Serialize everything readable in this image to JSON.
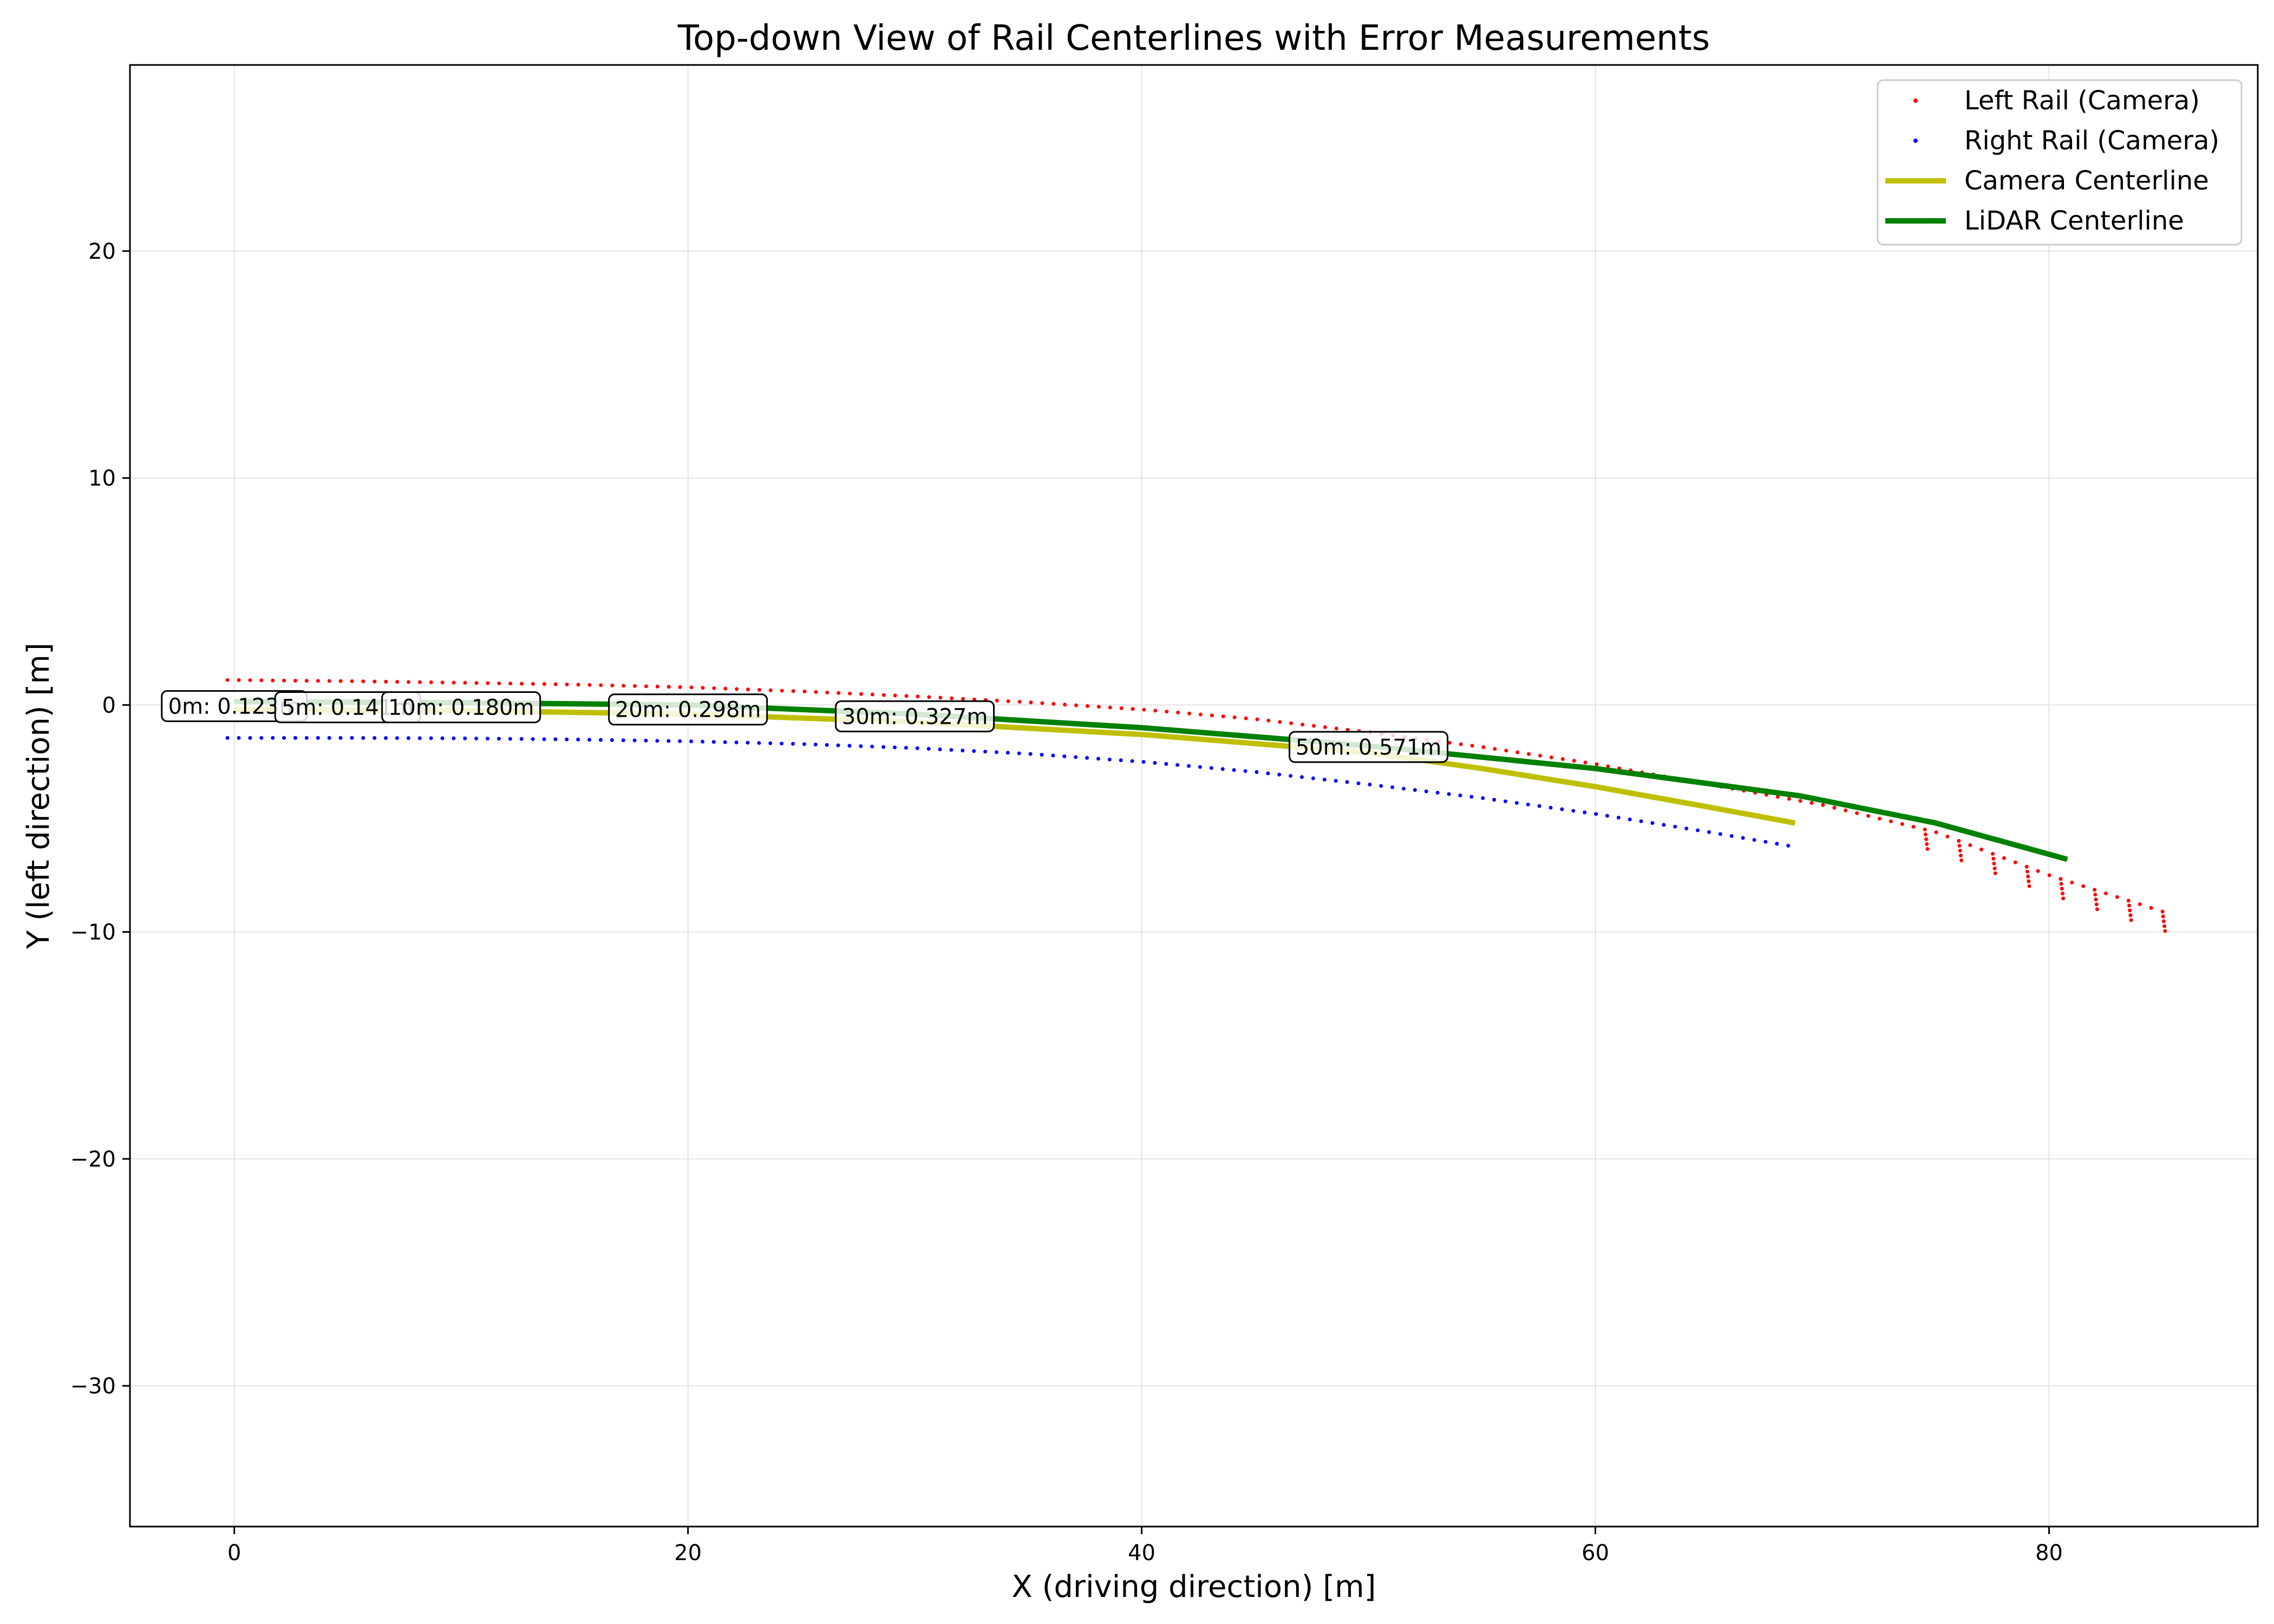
{
  "chart_data": {
    "type": "scatter",
    "title": "Top-down View of Rail Centerlines with Error Measurements",
    "xlabel": "X (driving direction) [m]",
    "ylabel": "Y (left direction) [m]",
    "xlim": [
      -4.6,
      89.2
    ],
    "ylim": [
      -36.2,
      28.2
    ],
    "x_ticks": [
      0,
      20,
      40,
      60,
      80
    ],
    "x_tick_labels": [
      "0",
      "20",
      "40",
      "60",
      "80"
    ],
    "y_ticks": [
      -30,
      -20,
      -10,
      0,
      10,
      20
    ],
    "y_tick_labels": [
      "−30",
      "−20",
      "−10",
      "0",
      "10",
      "20"
    ],
    "grid": true,
    "legend_position": "top-right",
    "series": [
      {
        "name": "Left Rail (Camera)",
        "style": "dots",
        "color": "#ff0000",
        "x": [
          -0.3,
          5,
          10,
          15,
          20,
          25,
          30,
          35,
          40,
          45,
          50,
          55,
          60,
          65,
          70,
          75,
          80,
          85
        ],
        "y": [
          1.1,
          1.05,
          0.98,
          0.9,
          0.78,
          0.6,
          0.38,
          0.12,
          -0.2,
          -0.62,
          -1.2,
          -1.85,
          -2.6,
          -3.5,
          -4.4,
          -5.6,
          -7.5,
          -9.1
        ]
      },
      {
        "name": "Right Rail (Camera)",
        "style": "dots",
        "color": "#0000ff",
        "x": [
          -0.3,
          5,
          10,
          15,
          20,
          25,
          30,
          35,
          40,
          45,
          50,
          55,
          60,
          65,
          68.5
        ],
        "y": [
          -1.45,
          -1.45,
          -1.47,
          -1.52,
          -1.6,
          -1.72,
          -1.9,
          -2.15,
          -2.5,
          -2.95,
          -3.5,
          -4.1,
          -4.8,
          -5.6,
          -6.2
        ]
      },
      {
        "name": "Camera Centerline",
        "style": "line",
        "color": "#bfbf00",
        "x": [
          0,
          10,
          20,
          30,
          40,
          50,
          55,
          60,
          65,
          68.8
        ],
        "y": [
          -0.2,
          -0.25,
          -0.4,
          -0.75,
          -1.3,
          -2.1,
          -2.8,
          -3.6,
          -4.5,
          -5.2
        ]
      },
      {
        "name": "LiDAR Centerline",
        "style": "line",
        "color": "#008000",
        "x": [
          0,
          10,
          20,
          30,
          40,
          50,
          60,
          69,
          75,
          80.8
        ],
        "y": [
          0.15,
          0.1,
          0.0,
          -0.4,
          -1.0,
          -1.8,
          -2.8,
          -4.0,
          -5.2,
          -6.8
        ]
      }
    ],
    "annotations": [
      {
        "text": "0m: 0.123m",
        "x": 0,
        "y": -0.05
      },
      {
        "text": "5m: 0.141m",
        "x": 5,
        "y": -0.1
      },
      {
        "text": "10m: 0.180m",
        "x": 10,
        "y": -0.1
      },
      {
        "text": "20m: 0.298m",
        "x": 20,
        "y": -0.2
      },
      {
        "text": "30m: 0.327m",
        "x": 30,
        "y": -0.5
      },
      {
        "text": "50m: 0.571m",
        "x": 50,
        "y": -1.85
      }
    ]
  }
}
